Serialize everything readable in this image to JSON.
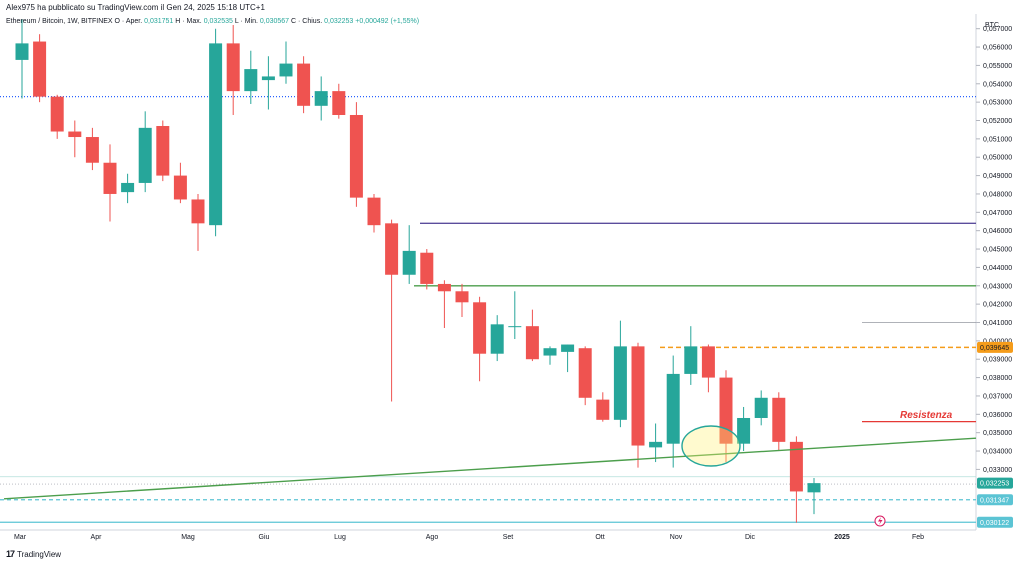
{
  "header": {
    "published_by": "Alex975 ha pubblicato su TradingView.com il Gen 24, 2025 15:18 UTC+1"
  },
  "legend": {
    "symbol": "Ethereum / Bitcoin, 1W, BITFINEX",
    "open_label": "O · Aper.",
    "open": "0,031751",
    "high_label": "H · Max.",
    "high": "0,032535",
    "low_label": "L · Min.",
    "low": "0,030567",
    "close_label": "C · Chius.",
    "close": "0,032253",
    "change": "+0,000492 (+1,55%)"
  },
  "footer": {
    "brand": "TradingView",
    "logo_glyph": "17"
  },
  "colors": {
    "up": "#26a69a",
    "down": "#ef5350",
    "purple": "#5b4d9c",
    "green": "#4c9e4c",
    "resistance": "#e53935",
    "orange": "#f59c1a",
    "cyan": "#5bc4d4",
    "blue_dotted": "#2962ff"
  },
  "chart_data": {
    "type": "candlestick",
    "currency": "BTC",
    "ylim": [
      0.0297,
      0.0578
    ],
    "y_ticks": [
      "0,057000",
      "0,056000",
      "0,055000",
      "0,054000",
      "0,053000",
      "0,052000",
      "0,051000",
      "0,050000",
      "0,049000",
      "0,048000",
      "0,047000",
      "0,046000",
      "0,045000",
      "0,044000",
      "0,043000",
      "0,042000",
      "0,041000",
      "0,040000",
      "0,039000",
      "0,038000",
      "0,037000",
      "0,036000",
      "0,035000",
      "0,034000",
      "0,033000"
    ],
    "x_ticks": [
      "Mar",
      "Apr",
      "Mag",
      "Giu",
      "Lug",
      "Ago",
      "Set",
      "Ott",
      "Nov",
      "Dic",
      "2025",
      "Feb"
    ],
    "price_tags": [
      {
        "label": "0,039645",
        "value": 0.039645,
        "color": "#f59c1a"
      },
      {
        "label": "0,032253",
        "value": 0.032253,
        "color": "#26a69a"
      },
      {
        "label": "0,031347",
        "value": 0.031347,
        "color": "#5bc4d4"
      },
      {
        "label": "0,030122",
        "value": 0.030122,
        "color": "#5bc4d4"
      }
    ],
    "annotations": [
      {
        "text": "Resistenza",
        "value": 0.0357
      }
    ],
    "levels": [
      {
        "name": "blue-dotted-level",
        "value": 0.0533
      },
      {
        "name": "purple-level",
        "value": 0.0464
      },
      {
        "name": "green-level",
        "value": 0.043
      },
      {
        "name": "orange-dashed-level",
        "value": 0.039645
      },
      {
        "name": "resistance-level",
        "value": 0.0356
      },
      {
        "name": "gray-level",
        "value": 0.041
      },
      {
        "name": "cyan-dashed-level",
        "value": 0.031347
      },
      {
        "name": "cyan-level",
        "value": 0.030122
      }
    ],
    "trendline": {
      "from": {
        "date": "2024-02",
        "value": 0.0314
      },
      "to": {
        "date": "2025-02",
        "value": 0.0347
      }
    },
    "candles": [
      {
        "o": 0.0553,
        "h": 0.0575,
        "l": 0.0532,
        "c": 0.0562
      },
      {
        "o": 0.0563,
        "h": 0.0567,
        "l": 0.053,
        "c": 0.0533
      },
      {
        "o": 0.0533,
        "h": 0.0534,
        "l": 0.051,
        "c": 0.0514
      },
      {
        "o": 0.0514,
        "h": 0.052,
        "l": 0.05,
        "c": 0.0511
      },
      {
        "o": 0.0511,
        "h": 0.0516,
        "l": 0.0493,
        "c": 0.0497
      },
      {
        "o": 0.0497,
        "h": 0.0507,
        "l": 0.0465,
        "c": 0.048
      },
      {
        "o": 0.0481,
        "h": 0.0491,
        "l": 0.0475,
        "c": 0.0486
      },
      {
        "o": 0.0486,
        "h": 0.0525,
        "l": 0.0481,
        "c": 0.0516
      },
      {
        "o": 0.0517,
        "h": 0.052,
        "l": 0.0487,
        "c": 0.049
      },
      {
        "o": 0.049,
        "h": 0.0497,
        "l": 0.0475,
        "c": 0.0477
      },
      {
        "o": 0.0477,
        "h": 0.048,
        "l": 0.0449,
        "c": 0.0464
      },
      {
        "o": 0.0463,
        "h": 0.057,
        "l": 0.0457,
        "c": 0.0562
      },
      {
        "o": 0.0562,
        "h": 0.0572,
        "l": 0.0523,
        "c": 0.0536
      },
      {
        "o": 0.0536,
        "h": 0.0558,
        "l": 0.0529,
        "c": 0.0548
      },
      {
        "o": 0.0542,
        "h": 0.0555,
        "l": 0.0526,
        "c": 0.0544
      },
      {
        "o": 0.0544,
        "h": 0.0563,
        "l": 0.054,
        "c": 0.0551
      },
      {
        "o": 0.0551,
        "h": 0.0555,
        "l": 0.0524,
        "c": 0.0528
      },
      {
        "o": 0.0528,
        "h": 0.0544,
        "l": 0.052,
        "c": 0.0536
      },
      {
        "o": 0.0536,
        "h": 0.054,
        "l": 0.0521,
        "c": 0.0523
      },
      {
        "o": 0.0523,
        "h": 0.053,
        "l": 0.0473,
        "c": 0.0478
      },
      {
        "o": 0.0478,
        "h": 0.048,
        "l": 0.0459,
        "c": 0.0463
      },
      {
        "o": 0.0464,
        "h": 0.0466,
        "l": 0.0367,
        "c": 0.0436
      },
      {
        "o": 0.0436,
        "h": 0.0463,
        "l": 0.0431,
        "c": 0.0449
      },
      {
        "o": 0.0448,
        "h": 0.045,
        "l": 0.0428,
        "c": 0.0431
      },
      {
        "o": 0.0431,
        "h": 0.0433,
        "l": 0.0407,
        "c": 0.0427
      },
      {
        "o": 0.0427,
        "h": 0.0431,
        "l": 0.0413,
        "c": 0.0421
      },
      {
        "o": 0.0421,
        "h": 0.0424,
        "l": 0.0378,
        "c": 0.0393
      },
      {
        "o": 0.0393,
        "h": 0.0414,
        "l": 0.0389,
        "c": 0.0409
      },
      {
        "o": 0.0408,
        "h": 0.0427,
        "l": 0.0401,
        "c": 0.0408
      },
      {
        "o": 0.0408,
        "h": 0.0417,
        "l": 0.0389,
        "c": 0.039
      },
      {
        "o": 0.0392,
        "h": 0.0397,
        "l": 0.0387,
        "c": 0.0396
      },
      {
        "o": 0.0394,
        "h": 0.0398,
        "l": 0.0383,
        "c": 0.0398
      },
      {
        "o": 0.0396,
        "h": 0.0397,
        "l": 0.0365,
        "c": 0.0369
      },
      {
        "o": 0.0368,
        "h": 0.0372,
        "l": 0.0356,
        "c": 0.0357
      },
      {
        "o": 0.0357,
        "h": 0.0411,
        "l": 0.0353,
        "c": 0.0397
      },
      {
        "o": 0.0397,
        "h": 0.0399,
        "l": 0.0331,
        "c": 0.0343
      },
      {
        "o": 0.0342,
        "h": 0.0355,
        "l": 0.0334,
        "c": 0.0345
      },
      {
        "o": 0.0344,
        "h": 0.0392,
        "l": 0.0331,
        "c": 0.0382
      },
      {
        "o": 0.0382,
        "h": 0.0408,
        "l": 0.0376,
        "c": 0.0397
      },
      {
        "o": 0.0397,
        "h": 0.0398,
        "l": 0.0372,
        "c": 0.038
      },
      {
        "o": 0.038,
        "h": 0.0384,
        "l": 0.0334,
        "c": 0.0344
      },
      {
        "o": 0.0344,
        "h": 0.0364,
        "l": 0.034,
        "c": 0.0358
      },
      {
        "o": 0.0358,
        "h": 0.0373,
        "l": 0.0354,
        "c": 0.0369
      },
      {
        "o": 0.0369,
        "h": 0.0372,
        "l": 0.034,
        "c": 0.0345
      },
      {
        "o": 0.0345,
        "h": 0.0348,
        "l": 0.0301,
        "c": 0.0318
      },
      {
        "o": 0.031751,
        "h": 0.032535,
        "l": 0.030567,
        "c": 0.032253
      }
    ]
  }
}
